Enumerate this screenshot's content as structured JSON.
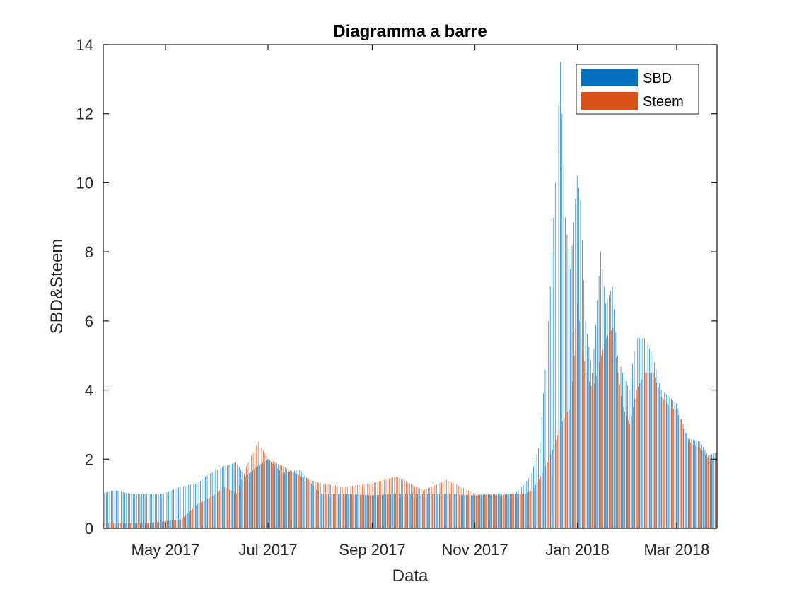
{
  "chart_data": {
    "type": "bar",
    "title": "Diagramma a barre",
    "xlabel": "Data",
    "ylabel": "SBD&Steem",
    "x_range": [
      "2017-03-25",
      "2018-03-25"
    ],
    "ylim": [
      0,
      14
    ],
    "y_ticks": [
      0,
      2,
      4,
      6,
      8,
      10,
      12,
      14
    ],
    "x_ticks": [
      {
        "date": "2017-05-01",
        "label": "May 2017"
      },
      {
        "date": "2017-07-01",
        "label": "Jul 2017"
      },
      {
        "date": "2017-09-01",
        "label": "Sep 2017"
      },
      {
        "date": "2017-11-01",
        "label": "Nov 2017"
      },
      {
        "date": "2018-01-01",
        "label": "Jan 2018"
      },
      {
        "date": "2018-03-01",
        "label": "Mar 2018"
      }
    ],
    "grid": false,
    "legend_position": "top-right",
    "series": [
      {
        "name": "SBD",
        "color": "#0072BD",
        "x": [
          "2017-03-25",
          "2017-04-01",
          "2017-04-10",
          "2017-04-20",
          "2017-04-30",
          "2017-05-10",
          "2017-05-20",
          "2017-05-28",
          "2017-06-05",
          "2017-06-12",
          "2017-06-18",
          "2017-06-25",
          "2017-07-01",
          "2017-07-10",
          "2017-07-20",
          "2017-08-01",
          "2017-08-15",
          "2017-09-01",
          "2017-09-15",
          "2017-10-01",
          "2017-10-15",
          "2017-11-01",
          "2017-11-15",
          "2017-11-25",
          "2017-12-01",
          "2017-12-05",
          "2017-12-10",
          "2017-12-15",
          "2017-12-20",
          "2017-12-22",
          "2017-12-25",
          "2017-12-28",
          "2018-01-01",
          "2018-01-03",
          "2018-01-06",
          "2018-01-10",
          "2018-01-15",
          "2018-01-18",
          "2018-01-22",
          "2018-01-25",
          "2018-01-28",
          "2018-02-01",
          "2018-02-05",
          "2018-02-10",
          "2018-02-15",
          "2018-02-20",
          "2018-02-25",
          "2018-03-01",
          "2018-03-08",
          "2018-03-15",
          "2018-03-20",
          "2018-03-25"
        ],
        "values": [
          1.0,
          1.1,
          1.0,
          1.0,
          1.0,
          1.2,
          1.3,
          1.6,
          1.8,
          1.9,
          1.5,
          1.8,
          2.0,
          1.6,
          1.7,
          1.0,
          1.0,
          0.95,
          1.0,
          1.0,
          1.0,
          0.95,
          1.0,
          1.0,
          1.3,
          1.6,
          2.5,
          6.0,
          11.0,
          13.5,
          9.0,
          7.5,
          10.2,
          9.5,
          6.0,
          4.5,
          8.0,
          6.5,
          7.0,
          5.0,
          4.5,
          4.0,
          5.5,
          5.5,
          5.0,
          4.0,
          3.8,
          3.6,
          2.6,
          2.5,
          2.1,
          2.2
        ]
      },
      {
        "name": "Steem",
        "color": "#D95319",
        "x": [
          "2017-03-25",
          "2017-04-01",
          "2017-04-10",
          "2017-04-20",
          "2017-04-30",
          "2017-05-10",
          "2017-05-20",
          "2017-05-28",
          "2017-06-05",
          "2017-06-12",
          "2017-06-18",
          "2017-06-25",
          "2017-07-01",
          "2017-07-10",
          "2017-07-20",
          "2017-08-01",
          "2017-08-15",
          "2017-09-01",
          "2017-09-15",
          "2017-10-01",
          "2017-10-15",
          "2017-11-01",
          "2017-11-15",
          "2017-11-25",
          "2017-12-01",
          "2017-12-05",
          "2017-12-10",
          "2017-12-15",
          "2017-12-20",
          "2017-12-22",
          "2017-12-25",
          "2017-12-28",
          "2018-01-01",
          "2018-01-03",
          "2018-01-06",
          "2018-01-10",
          "2018-01-15",
          "2018-01-18",
          "2018-01-22",
          "2018-01-25",
          "2018-01-28",
          "2018-02-01",
          "2018-02-05",
          "2018-02-10",
          "2018-02-15",
          "2018-02-20",
          "2018-02-25",
          "2018-03-01",
          "2018-03-08",
          "2018-03-15",
          "2018-03-20",
          "2018-03-25"
        ],
        "values": [
          0.15,
          0.15,
          0.15,
          0.15,
          0.2,
          0.25,
          0.7,
          0.9,
          1.2,
          1.0,
          1.8,
          2.5,
          2.0,
          1.8,
          1.5,
          1.3,
          1.2,
          1.3,
          1.5,
          1.1,
          1.4,
          1.0,
          0.95,
          1.0,
          1.0,
          1.1,
          1.5,
          2.0,
          2.7,
          3.0,
          3.3,
          3.5,
          6.5,
          5.5,
          4.5,
          4.0,
          5.0,
          5.5,
          5.8,
          4.5,
          3.5,
          3.0,
          4.0,
          4.5,
          4.5,
          3.8,
          3.5,
          3.4,
          2.5,
          2.3,
          2.0,
          2.0
        ]
      }
    ]
  }
}
